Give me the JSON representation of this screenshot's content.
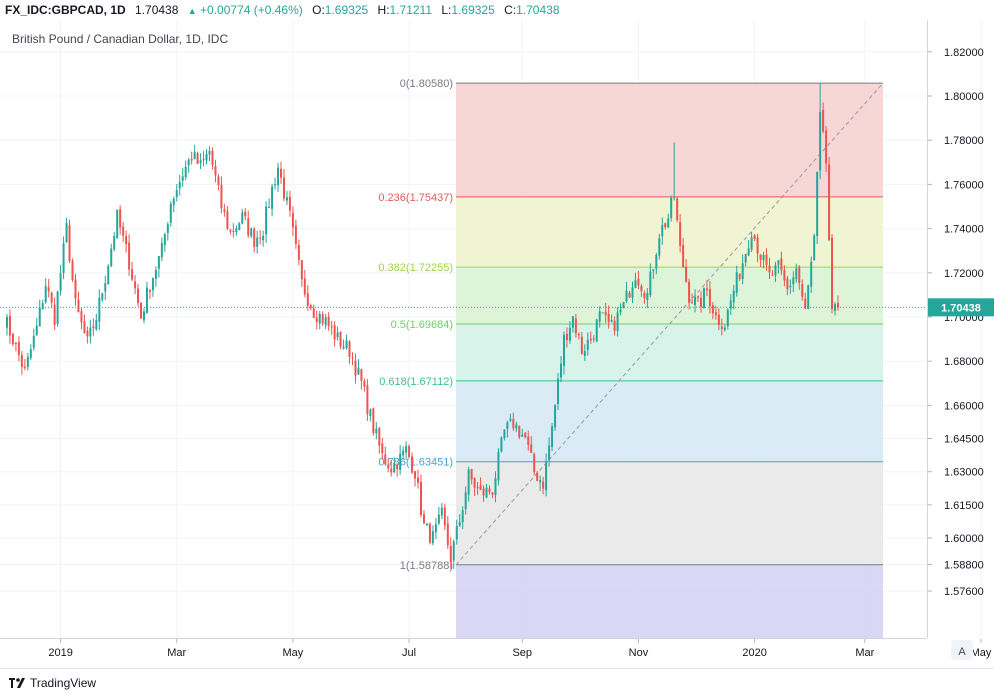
{
  "header": {
    "symbol": "FX_IDC:GBPCAD, 1D",
    "price": "1.70438",
    "change_icon": "triangle-up-icon",
    "change": "+0.00774 (+0.46%)",
    "open_label": "O:",
    "open": "1.69325",
    "high_label": "H:",
    "high": "1.71211",
    "low_label": "L:",
    "low": "1.69325",
    "close_label": "C:",
    "close": "1.70438"
  },
  "footer": {
    "logo_icon": "tradingview-logo-icon",
    "brand": "TradingView"
  },
  "colors": {
    "up": "#26a69a",
    "down": "#ef5350",
    "last_price": "#26a69a",
    "price_line": "#26a69a"
  },
  "chart_data": {
    "type": "candlestick",
    "title": "British Pound / Canadian Dollar, 1D, IDC",
    "last_price_label": "1.70438",
    "last_price": 1.70438,
    "y_axis": {
      "ticks": [
        "1.82000",
        "1.80000",
        "1.78000",
        "1.76000",
        "1.74000",
        "1.72000",
        "1.70000",
        "1.68000",
        "1.66000",
        "1.64500",
        "1.63000",
        "1.61500",
        "1.60000",
        "1.58800",
        "1.57600"
      ]
    },
    "x_axis": {
      "ticks": [
        "2019",
        "Mar",
        "May",
        "Jul",
        "Sep",
        "Nov",
        "2020",
        "Mar",
        "May"
      ]
    },
    "scale_button": "A",
    "grid": true,
    "fib_retracement": {
      "levels": [
        {
          "ratio_label": "0",
          "price": 1.8058,
          "label": "0(1.80580)",
          "line": "#787b86",
          "fill": "#f5d0cf"
        },
        {
          "ratio_label": "0.236",
          "price": 1.75437,
          "label": "0.236(1.75437)",
          "line": "#e05c5c",
          "fill": "#eef2cb"
        },
        {
          "ratio_label": "0.382",
          "price": 1.72255,
          "label": "0.382(1.72255)",
          "line": "#9ed54a",
          "fill": "#d8f2d2"
        },
        {
          "ratio_label": "0.5",
          "price": 1.69684,
          "label": "0.5(1.69684)",
          "line": "#6fcf6b",
          "fill": "#d1f2e6"
        },
        {
          "ratio_label": "0.618",
          "price": 1.67112,
          "label": "0.618(1.67112)",
          "line": "#3fbf8f",
          "fill": "#d3e8f5"
        },
        {
          "ratio_label": "0.786",
          "price": 1.63451,
          "label": "0.786(1.63451)",
          "line": "#4a9fd4",
          "fill": "#e6e6e6"
        },
        {
          "ratio_label": "1",
          "price": 1.58788,
          "label": "1(1.58788)",
          "line": "#787b86",
          "fill": "#d2d0f2"
        }
      ],
      "trend_start_price": 1.58788,
      "trend_end_price": 1.8058
    },
    "anchors": [
      {
        "t": 0,
        "p": 1.7
      },
      {
        "t": 3,
        "p": 1.69
      },
      {
        "t": 7,
        "p": 1.675
      },
      {
        "t": 11,
        "p": 1.695
      },
      {
        "t": 14,
        "p": 1.715
      },
      {
        "t": 17,
        "p": 1.7
      },
      {
        "t": 21,
        "p": 1.74
      },
      {
        "t": 24,
        "p": 1.705
      },
      {
        "t": 28,
        "p": 1.688
      },
      {
        "t": 31,
        "p": 1.7
      },
      {
        "t": 34,
        "p": 1.718
      },
      {
        "t": 38,
        "p": 1.745
      },
      {
        "t": 42,
        "p": 1.725
      },
      {
        "t": 46,
        "p": 1.7
      },
      {
        "t": 49,
        "p": 1.715
      },
      {
        "t": 53,
        "p": 1.73
      },
      {
        "t": 56,
        "p": 1.752
      },
      {
        "t": 60,
        "p": 1.765
      },
      {
        "t": 63,
        "p": 1.773
      },
      {
        "t": 66,
        "p": 1.768
      },
      {
        "t": 69,
        "p": 1.775
      },
      {
        "t": 73,
        "p": 1.75
      },
      {
        "t": 76,
        "p": 1.738
      },
      {
        "t": 80,
        "p": 1.745
      },
      {
        "t": 84,
        "p": 1.735
      },
      {
        "t": 87,
        "p": 1.74
      },
      {
        "t": 90,
        "p": 1.758
      },
      {
        "t": 92,
        "p": 1.768
      },
      {
        "t": 96,
        "p": 1.745
      },
      {
        "t": 100,
        "p": 1.715
      },
      {
        "t": 104,
        "p": 1.703
      },
      {
        "t": 108,
        "p": 1.698
      },
      {
        "t": 112,
        "p": 1.69
      },
      {
        "t": 116,
        "p": 1.685
      },
      {
        "t": 120,
        "p": 1.67
      },
      {
        "t": 124,
        "p": 1.65
      },
      {
        "t": 127,
        "p": 1.637
      },
      {
        "t": 130,
        "p": 1.632
      },
      {
        "t": 133,
        "p": 1.636
      },
      {
        "t": 135,
        "p": 1.64
      },
      {
        "t": 138,
        "p": 1.63
      },
      {
        "t": 141,
        "p": 1.605
      },
      {
        "t": 144,
        "p": 1.6
      },
      {
        "t": 147,
        "p": 1.61
      },
      {
        "t": 150,
        "p": 1.591
      },
      {
        "t": 153,
        "p": 1.608
      },
      {
        "t": 156,
        "p": 1.628
      },
      {
        "t": 160,
        "p": 1.62
      },
      {
        "t": 164,
        "p": 1.622
      },
      {
        "t": 168,
        "p": 1.648
      },
      {
        "t": 171,
        "p": 1.652
      },
      {
        "t": 175,
        "p": 1.645
      },
      {
        "t": 178,
        "p": 1.63
      },
      {
        "t": 181,
        "p": 1.625
      },
      {
        "t": 184,
        "p": 1.65
      },
      {
        "t": 188,
        "p": 1.69
      },
      {
        "t": 191,
        "p": 1.7
      },
      {
        "t": 194,
        "p": 1.685
      },
      {
        "t": 197,
        "p": 1.69
      },
      {
        "t": 200,
        "p": 1.7
      },
      {
        "t": 204,
        "p": 1.695
      },
      {
        "t": 208,
        "p": 1.705
      },
      {
        "t": 212,
        "p": 1.72
      },
      {
        "t": 216,
        "p": 1.71
      },
      {
        "t": 220,
        "p": 1.738
      },
      {
        "t": 223,
        "p": 1.745
      },
      {
        "t": 225,
        "p": 1.755
      },
      {
        "t": 227,
        "p": 1.73
      },
      {
        "t": 230,
        "p": 1.71
      },
      {
        "t": 233,
        "p": 1.705
      },
      {
        "t": 236,
        "p": 1.712
      },
      {
        "t": 239,
        "p": 1.7
      },
      {
        "t": 242,
        "p": 1.697
      },
      {
        "t": 245,
        "p": 1.712
      },
      {
        "t": 248,
        "p": 1.725
      },
      {
        "t": 251,
        "p": 1.74
      },
      {
        "t": 254,
        "p": 1.728
      },
      {
        "t": 257,
        "p": 1.718
      },
      {
        "t": 260,
        "p": 1.722
      },
      {
        "t": 263,
        "p": 1.712
      },
      {
        "t": 266,
        "p": 1.722
      },
      {
        "t": 269,
        "p": 1.702
      },
      {
        "t": 272,
        "p": 1.735
      },
      {
        "t": 274,
        "p": 1.79
      },
      {
        "t": 276,
        "p": 1.77
      },
      {
        "t": 278,
        "p": 1.7
      },
      {
        "t": 280,
        "p": 1.704
      }
    ]
  }
}
